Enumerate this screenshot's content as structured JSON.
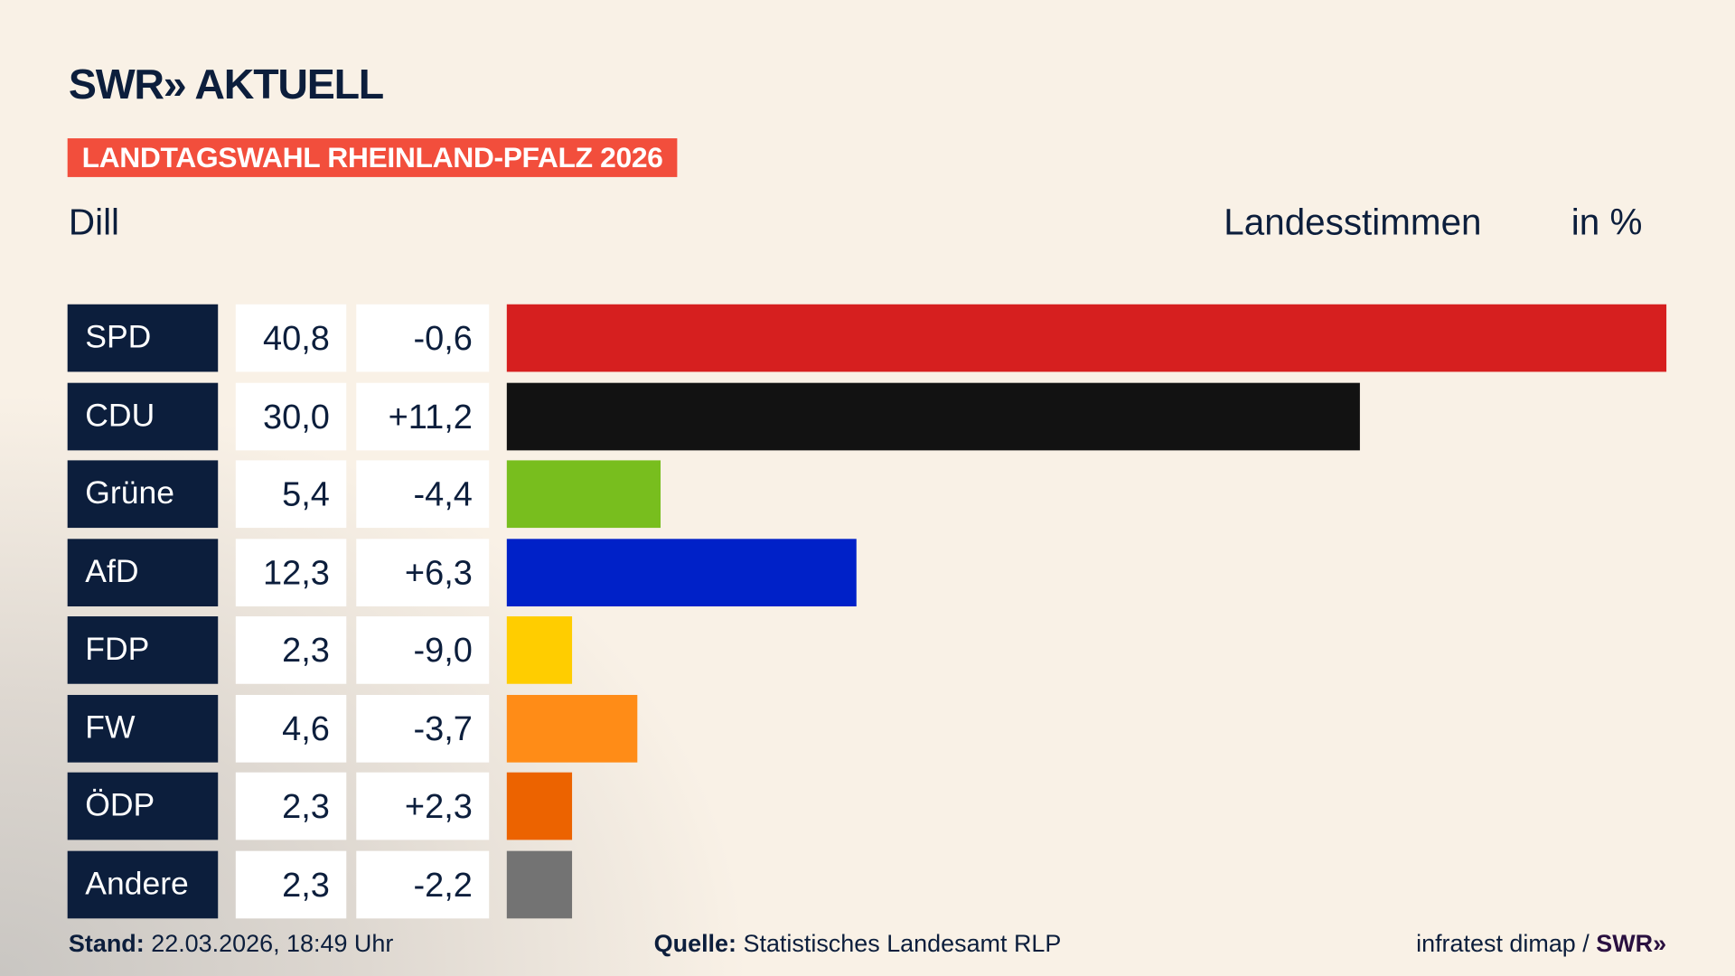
{
  "header": {
    "logo_text": "SWR» AKTUELL",
    "banner": "LANDTAGSWAHL RHEINLAND-PFALZ 2026",
    "region": "Dill",
    "vote_type": "Landesstimmen",
    "unit": "in %"
  },
  "chart_data": {
    "type": "bar",
    "orientation": "horizontal",
    "title": "Landtagswahl Rheinland-Pfalz 2026 – Dill – Landesstimmen in %",
    "categories": [
      "SPD",
      "CDU",
      "Grüne",
      "AfD",
      "FDP",
      "FW",
      "ÖDP",
      "Andere"
    ],
    "values": [
      40.8,
      30.0,
      5.4,
      12.3,
      2.3,
      4.6,
      2.3,
      2.3
    ],
    "value_labels": [
      "40,8",
      "30,0",
      "5,4",
      "12,3",
      "2,3",
      "4,6",
      "2,3",
      "2,3"
    ],
    "diffs": [
      -0.6,
      11.2,
      -4.4,
      6.3,
      -9.0,
      -3.7,
      2.3,
      -2.2
    ],
    "diff_labels": [
      "-0,6",
      "+11,2",
      "-4,4",
      "+6,3",
      "-9,0",
      "-3,7",
      "+2,3",
      "-2,2"
    ],
    "colors": [
      "#d61f1f",
      "#121212",
      "#78be1e",
      "#0021c8",
      "#ffcd00",
      "#ff8c17",
      "#ec6300",
      "#737373"
    ],
    "xlim": [
      0,
      40.8
    ]
  },
  "footer": {
    "stand_label": "Stand:",
    "stand_value": "22.03.2026, 18:49 Uhr",
    "source_label": "Quelle:",
    "source_value": "Statistisches Landesamt RLP",
    "credit": "infratest dimap /",
    "credit_logo": "SWR»"
  }
}
